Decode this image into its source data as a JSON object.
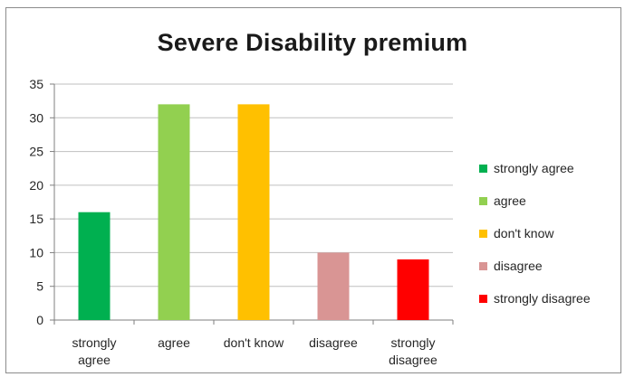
{
  "chart_data": {
    "type": "bar",
    "title": "Severe Disability premium",
    "categories": [
      "strongly agree",
      "agree",
      "don't know",
      "disagree",
      "strongly disagree"
    ],
    "category_labels": [
      [
        "strongly",
        "agree"
      ],
      [
        "agree"
      ],
      [
        "don't know"
      ],
      [
        "disagree"
      ],
      [
        "strongly",
        "disagree"
      ]
    ],
    "values": [
      16,
      32,
      32,
      10,
      9
    ],
    "colors": [
      "#00b050",
      "#92d050",
      "#ffc000",
      "#d99594",
      "#ff0000"
    ],
    "ylim": [
      0,
      35
    ],
    "yticks": [
      "0",
      "5",
      "10",
      "15",
      "20",
      "25",
      "30",
      "35"
    ],
    "grid": true,
    "legend_position": "right"
  }
}
